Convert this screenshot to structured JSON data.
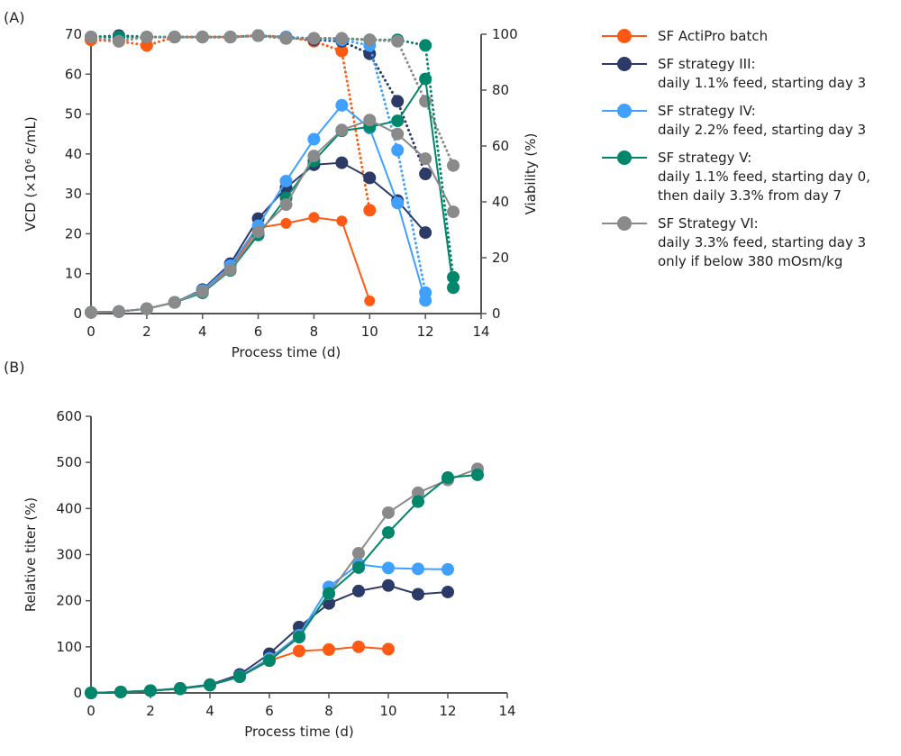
{
  "chart_data": [
    {
      "panel": "(A)",
      "type": "line",
      "xlabel": "Process time (d)",
      "ylabel": "VCD (×10⁶ c/mL)",
      "y2label": "Viability (%)",
      "xlim": [
        0,
        14
      ],
      "ylim": [
        0,
        70
      ],
      "y2lim": [
        0,
        100
      ],
      "xticks": [
        0,
        2,
        4,
        6,
        8,
        10,
        12,
        14
      ],
      "yticks": [
        0,
        10,
        20,
        30,
        40,
        50,
        60,
        70
      ],
      "y2ticks": [
        0,
        20,
        40,
        60,
        80,
        100
      ],
      "grid": false,
      "legend_position": "right",
      "series": [
        {
          "name": "SF ActiPro batch",
          "color": "#FF5A14",
          "x": [
            0,
            1,
            2,
            3,
            4,
            5,
            6,
            7,
            8,
            9,
            10
          ],
          "vcd": [
            0.3,
            0.5,
            1.2,
            2.8,
            5.5,
            11.5,
            21.5,
            22.6,
            24.1,
            23.2,
            3.2
          ],
          "viability": [
            98,
            97.5,
            96,
            99,
            99,
            99,
            99.5,
            99,
            97.5,
            94,
            37
          ]
        },
        {
          "name": "SF strategy III:\ndaily 1.1% feed, starting day 3",
          "color": "#2B3A67",
          "x": [
            0,
            1,
            2,
            3,
            4,
            5,
            6,
            7,
            8,
            9,
            10,
            11,
            12
          ],
          "vcd": [
            0.3,
            0.5,
            1.2,
            2.8,
            6,
            12.5,
            23.8,
            31.5,
            37.3,
            37.8,
            34,
            28.3,
            20.3
          ],
          "viability": [
            99,
            99.5,
            99,
            99,
            99,
            99,
            99.5,
            99,
            98,
            97.5,
            93,
            76,
            50
          ]
        },
        {
          "name": "SF strategy IV:\ndaily 2.2% feed, starting day 3",
          "color": "#3FA0FF",
          "x": [
            0,
            1,
            2,
            3,
            4,
            5,
            6,
            7,
            8,
            9,
            10,
            11,
            12
          ],
          "vcd": [
            0.3,
            0.5,
            1.2,
            2.8,
            5.8,
            12,
            22,
            33.2,
            43.7,
            52.2,
            46.5,
            27.7,
            3.3
          ],
          "viability": [
            99,
            99,
            99,
            99,
            99,
            99,
            99.5,
            99,
            98.5,
            98,
            96,
            58.5,
            7.5
          ]
        },
        {
          "name": "SF strategy V:\ndaily 1.1% feed, starting day 0,\nthen daily 3.3% from day 7",
          "color": "#00866B",
          "x": [
            0,
            1,
            2,
            3,
            4,
            5,
            6,
            7,
            8,
            9,
            10,
            11,
            12,
            13
          ],
          "vcd": [
            0.3,
            0.5,
            1.2,
            2.8,
            5.2,
            10.8,
            19.7,
            29,
            38.3,
            45.8,
            46.8,
            48.3,
            58.8,
            6.5
          ],
          "viability": [
            99,
            99,
            99,
            99,
            99,
            99,
            99.5,
            98.5,
            98.5,
            98.5,
            98,
            98,
            96,
            13
          ]
        },
        {
          "name": "SF Strategy VI:\ndaily 3.3% feed, starting day 3\nonly if below 380 mOsm/kg",
          "color": "#8A8A8A",
          "x": [
            0,
            1,
            2,
            3,
            4,
            5,
            6,
            7,
            8,
            9,
            10,
            11,
            12,
            13
          ],
          "vcd": [
            0.3,
            0.5,
            1.2,
            2.8,
            5.5,
            11,
            20.5,
            27.3,
            39.5,
            46,
            48.5,
            45,
            38.8,
            25.5
          ],
          "viability": [
            99,
            97.5,
            99,
            99,
            99,
            99,
            99.5,
            98.5,
            98.5,
            98.5,
            98,
            97.5,
            76,
            53
          ]
        }
      ]
    },
    {
      "panel": "(B)",
      "type": "line",
      "xlabel": "Process time (d)",
      "ylabel": "Relative titer (%)",
      "xlim": [
        0,
        14
      ],
      "ylim": [
        0,
        600
      ],
      "xticks": [
        0,
        2,
        4,
        6,
        8,
        10,
        12,
        14
      ],
      "yticks": [
        0,
        100,
        200,
        300,
        400,
        500,
        600
      ],
      "grid": false,
      "series": [
        {
          "color": "#FF5A14",
          "x": [
            0,
            1,
            2,
            3,
            4,
            5,
            6,
            7,
            8,
            9,
            10
          ],
          "values": [
            0,
            2,
            5,
            9,
            17,
            35,
            70,
            91,
            94,
            100,
            95
          ]
        },
        {
          "color": "#2B3A67",
          "x": [
            0,
            1,
            2,
            3,
            4,
            5,
            6,
            7,
            8,
            9,
            10,
            11,
            12
          ],
          "values": [
            0,
            2,
            5,
            10,
            18,
            40,
            85,
            143,
            194,
            221,
            233,
            214,
            219
          ]
        },
        {
          "color": "#3FA0FF",
          "x": [
            0,
            1,
            2,
            3,
            4,
            5,
            6,
            7,
            8,
            9,
            10,
            11,
            12
          ],
          "values": [
            0,
            2,
            5,
            9,
            17,
            36,
            75,
            125,
            230,
            279,
            271,
            269,
            268
          ]
        },
        {
          "color": "#8A8A8A",
          "x": [
            0,
            1,
            2,
            3,
            4,
            5,
            6,
            7,
            8,
            9,
            10,
            11,
            12,
            13
          ],
          "values": [
            0,
            2,
            5,
            9,
            17,
            35,
            72,
            122,
            215,
            303,
            391,
            434,
            462,
            486
          ]
        },
        {
          "color": "#00866B",
          "x": [
            0,
            1,
            2,
            3,
            4,
            5,
            6,
            7,
            8,
            9,
            10,
            11,
            12,
            13
          ],
          "values": [
            0,
            2,
            5,
            9,
            17,
            35,
            70,
            121,
            216,
            272,
            348,
            415,
            467,
            473
          ]
        }
      ]
    }
  ]
}
